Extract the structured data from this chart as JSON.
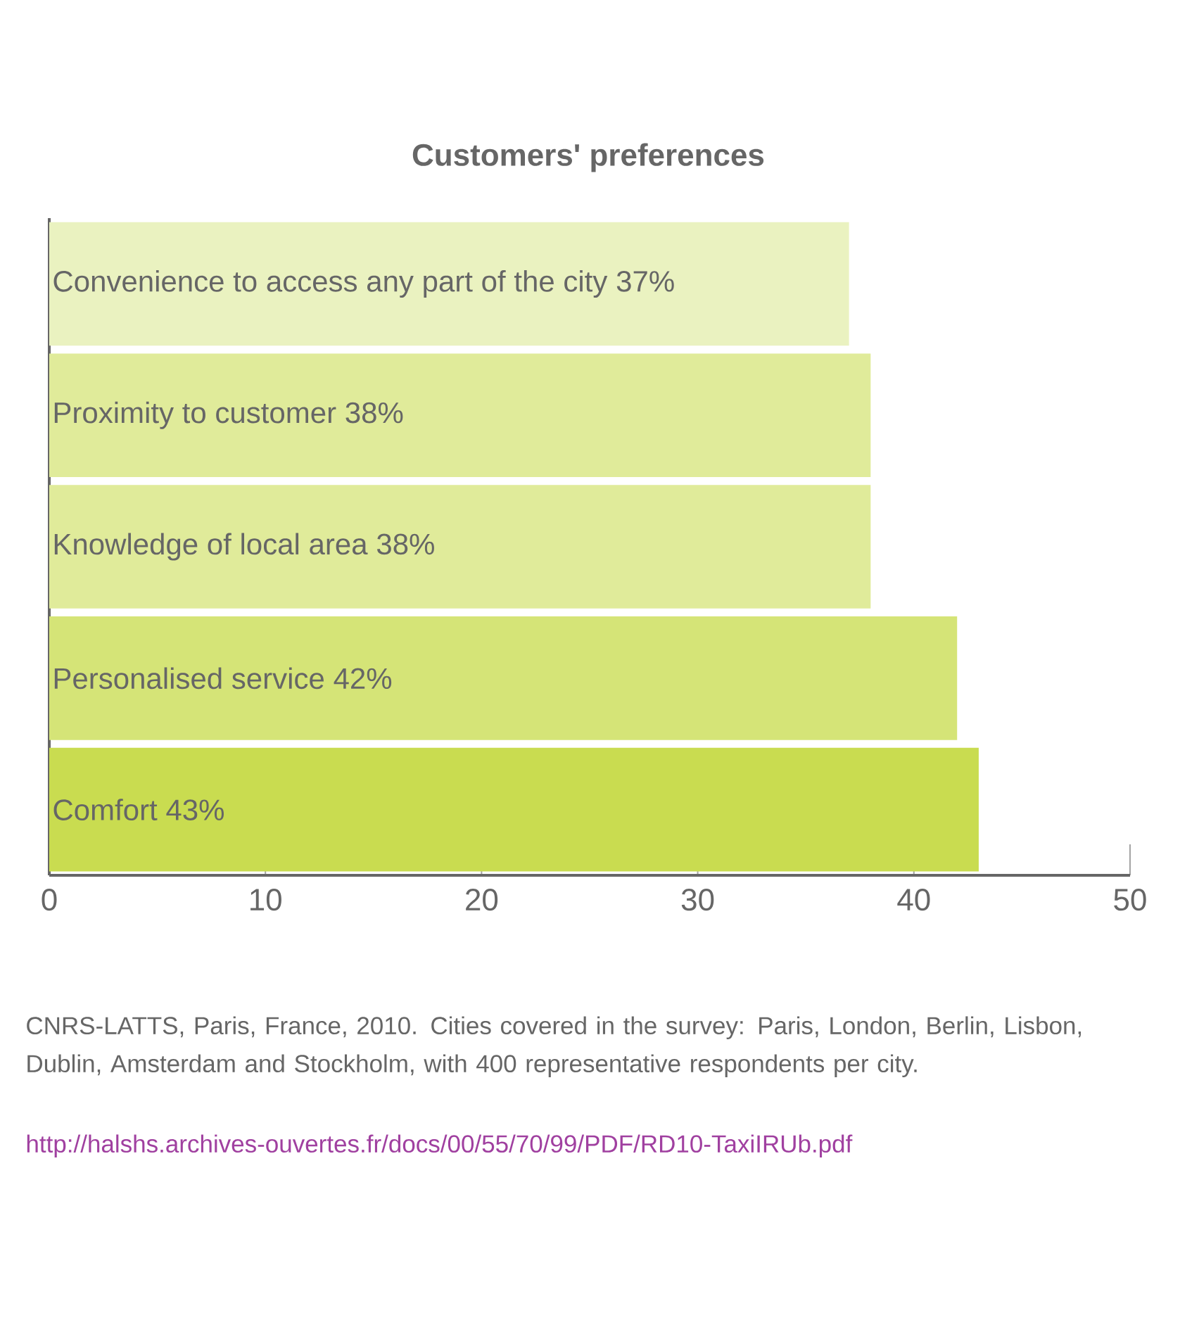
{
  "chart_data": {
    "type": "bar",
    "orientation": "horizontal",
    "title": "Customers' preferences",
    "categories": [
      "Convenience to access any part of the city",
      "Proximity to customer",
      "Knowledge of local area",
      "Personalised service",
      "Comfort"
    ],
    "values": [
      37,
      38,
      38,
      42,
      43
    ],
    "value_labels": [
      "37%",
      "38%",
      "38%",
      "42%",
      "43%"
    ],
    "colors": [
      "#eaf2c0",
      "#e0eb9a",
      "#e0eb9a",
      "#d5e477",
      "#c9dc50"
    ],
    "xlim": [
      0,
      50
    ],
    "xticks": [
      0,
      10,
      20,
      30,
      40,
      50
    ],
    "annotations": [
      "CNRS-LATTS, Paris, France, 2010. Cities covered in the survey: Paris, London, Berlin, Lisbon, Dublin, Amsterdam and Stockholm, with 400 representative respondents per city.",
      "http://halshs.archives-ouvertes.fr/docs/00/55/70/99/PDF/RD10-TaxiIRUb.pdf"
    ]
  }
}
